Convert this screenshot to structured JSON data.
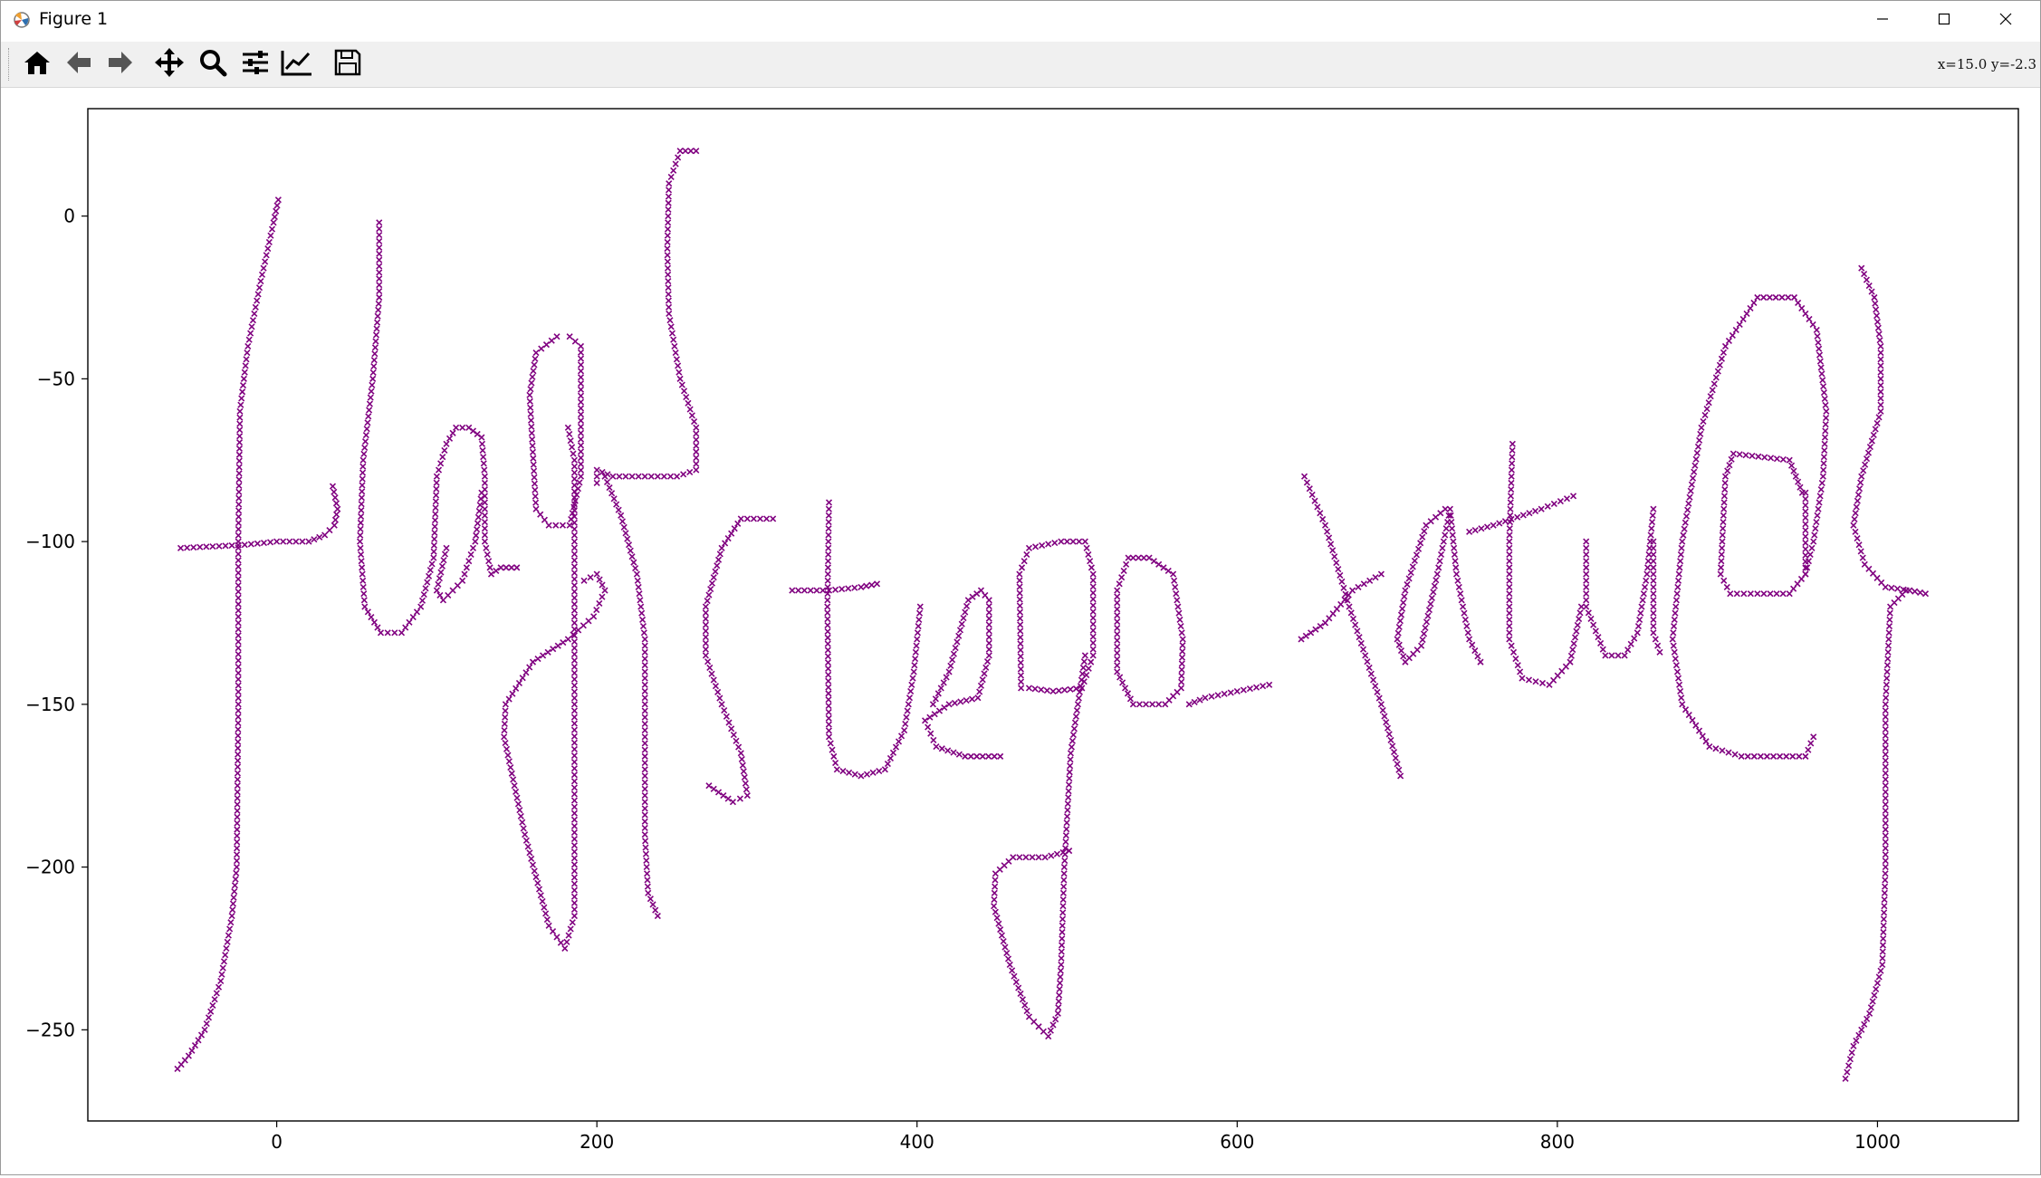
{
  "window": {
    "title": "Figure 1",
    "minimize_icon": "minimize-icon",
    "maximize_icon": "maximize-icon",
    "close_icon": "close-icon"
  },
  "toolbar": {
    "tools": [
      "home-icon",
      "back-arrow-icon",
      "forward-arrow-icon",
      "pan-icon",
      "zoom-icon",
      "configure-subplots-icon",
      "edit-axis-icon",
      "save-icon"
    ],
    "coordinates": "x=15.0  y=-2.3"
  },
  "colors": {
    "marker": "#800080",
    "axes": "#000000",
    "background": "#ffffff"
  },
  "chart_data": {
    "type": "scatter",
    "marker": "x",
    "color": "#800080",
    "title": "",
    "xlabel": "",
    "ylabel": "",
    "xlim": [
      -118,
      1088
    ],
    "ylim": [
      -278,
      33
    ],
    "xticks": [
      0,
      200,
      400,
      600,
      800,
      1000
    ],
    "xticklabels": [
      "0",
      "200",
      "400",
      "600",
      "800",
      "1000"
    ],
    "yticks": [
      0,
      -50,
      -100,
      -150,
      -200,
      -250
    ],
    "yticklabels": [
      "0",
      "−50",
      "−100",
      "−150",
      "−200",
      "−250"
    ],
    "grid": false,
    "strokes": [
      [
        [
          -60,
          -102
        ],
        [
          -20,
          -101
        ],
        [
          0,
          -100
        ],
        [
          20,
          -100
        ],
        [
          30,
          -98
        ],
        [
          36,
          -95
        ],
        [
          38,
          -90
        ],
        [
          35,
          -83
        ]
      ],
      [
        [
          1,
          5
        ],
        [
          -2,
          -2
        ],
        [
          -10,
          -20
        ],
        [
          -18,
          -40
        ],
        [
          -23,
          -60
        ],
        [
          -24,
          -100
        ],
        [
          -24,
          -150
        ],
        [
          -25,
          -200
        ],
        [
          -28,
          -215
        ],
        [
          -35,
          -235
        ],
        [
          -45,
          -250
        ],
        [
          -55,
          -258
        ],
        [
          -62,
          -262
        ]
      ],
      [
        [
          64,
          -2
        ],
        [
          64,
          -25
        ],
        [
          60,
          -50
        ],
        [
          54,
          -75
        ],
        [
          52,
          -100
        ],
        [
          55,
          -120
        ],
        [
          65,
          -128
        ],
        [
          78,
          -128
        ],
        [
          90,
          -120
        ],
        [
          98,
          -105
        ],
        [
          100,
          -80
        ],
        [
          106,
          -70
        ],
        [
          112,
          -65
        ],
        [
          120,
          -65
        ],
        [
          128,
          -68
        ],
        [
          130,
          -80
        ],
        [
          130,
          -100
        ],
        [
          134,
          -110
        ],
        [
          140,
          -108
        ],
        [
          150,
          -108
        ]
      ],
      [
        [
          106,
          -102
        ],
        [
          100,
          -115
        ],
        [
          104,
          -118
        ],
        [
          116,
          -112
        ],
        [
          124,
          -100
        ],
        [
          128,
          -85
        ]
      ],
      [
        [
          175,
          -37
        ],
        [
          162,
          -42
        ],
        [
          158,
          -55
        ],
        [
          162,
          -90
        ],
        [
          170,
          -95
        ],
        [
          183,
          -95
        ],
        [
          190,
          -80
        ],
        [
          190,
          -40
        ],
        [
          183,
          -37
        ]
      ],
      [
        [
          182,
          -65
        ],
        [
          186,
          -75
        ],
        [
          186,
          -150
        ],
        [
          186,
          -215
        ],
        [
          180,
          -225
        ],
        [
          170,
          -218
        ],
        [
          155,
          -190
        ],
        [
          142,
          -160
        ],
        [
          143,
          -150
        ],
        [
          160,
          -137
        ],
        [
          182,
          -130
        ],
        [
          198,
          -123
        ],
        [
          205,
          -115
        ],
        [
          200,
          -110
        ],
        [
          192,
          -112
        ]
      ],
      [
        [
          200,
          -82
        ],
        [
          200,
          -78
        ],
        [
          210,
          -80
        ],
        [
          250,
          -80
        ],
        [
          262,
          -78
        ],
        [
          262,
          -65
        ],
        [
          252,
          -50
        ],
        [
          245,
          -30
        ],
        [
          244,
          -10
        ],
        [
          245,
          10
        ],
        [
          252,
          20
        ],
        [
          262,
          20
        ]
      ],
      [
        [
          205,
          -80
        ],
        [
          215,
          -92
        ],
        [
          225,
          -110
        ],
        [
          230,
          -130
        ],
        [
          230,
          -160
        ],
        [
          230,
          -190
        ],
        [
          232,
          -208
        ],
        [
          238,
          -215
        ]
      ],
      [
        [
          310,
          -93
        ],
        [
          290,
          -93
        ],
        [
          278,
          -102
        ],
        [
          268,
          -120
        ],
        [
          268,
          -135
        ],
        [
          278,
          -150
        ],
        [
          290,
          -165
        ],
        [
          294,
          -178
        ],
        [
          285,
          -180
        ],
        [
          270,
          -175
        ]
      ],
      [
        [
          345,
          -88
        ],
        [
          344,
          -120
        ],
        [
          345,
          -160
        ],
        [
          350,
          -170
        ],
        [
          365,
          -172
        ],
        [
          380,
          -170
        ],
        [
          392,
          -158
        ],
        [
          398,
          -140
        ],
        [
          402,
          -120
        ]
      ],
      [
        [
          322,
          -115
        ],
        [
          345,
          -115
        ],
        [
          365,
          -114
        ],
        [
          375,
          -113
        ]
      ],
      [
        [
          410,
          -150
        ],
        [
          420,
          -140
        ],
        [
          432,
          -118
        ],
        [
          440,
          -115
        ],
        [
          445,
          -118
        ],
        [
          445,
          -135
        ],
        [
          438,
          -148
        ],
        [
          420,
          -150
        ],
        [
          405,
          -155
        ],
        [
          412,
          -163
        ],
        [
          430,
          -166
        ],
        [
          452,
          -166
        ]
      ],
      [
        [
          465,
          -145
        ],
        [
          464,
          -110
        ],
        [
          470,
          -102
        ],
        [
          490,
          -100
        ],
        [
          505,
          -100
        ],
        [
          510,
          -110
        ],
        [
          510,
          -135
        ],
        [
          503,
          -145
        ],
        [
          485,
          -146
        ],
        [
          470,
          -145
        ]
      ],
      [
        [
          505,
          -135
        ],
        [
          496,
          -165
        ],
        [
          492,
          -200
        ],
        [
          490,
          -230
        ],
        [
          488,
          -245
        ],
        [
          482,
          -252
        ],
        [
          470,
          -246
        ],
        [
          458,
          -230
        ],
        [
          448,
          -212
        ],
        [
          449,
          -202
        ],
        [
          460,
          -197
        ],
        [
          480,
          -197
        ],
        [
          495,
          -195
        ]
      ],
      [
        [
          535,
          -105
        ],
        [
          545,
          -105
        ],
        [
          560,
          -110
        ],
        [
          566,
          -130
        ],
        [
          565,
          -145
        ],
        [
          555,
          -150
        ],
        [
          535,
          -150
        ],
        [
          525,
          -140
        ],
        [
          525,
          -115
        ],
        [
          532,
          -105
        ]
      ],
      [
        [
          570,
          -150
        ],
        [
          580,
          -148
        ],
        [
          600,
          -146
        ],
        [
          620,
          -144
        ]
      ],
      [
        [
          642,
          -80
        ],
        [
          655,
          -95
        ],
        [
          670,
          -120
        ],
        [
          690,
          -150
        ],
        [
          702,
          -172
        ]
      ],
      [
        [
          690,
          -110
        ],
        [
          672,
          -115
        ],
        [
          655,
          -125
        ],
        [
          640,
          -130
        ]
      ],
      [
        [
          730,
          -90
        ],
        [
          718,
          -95
        ],
        [
          705,
          -115
        ],
        [
          700,
          -130
        ],
        [
          705,
          -137
        ],
        [
          715,
          -132
        ],
        [
          725,
          -110
        ],
        [
          733,
          -90
        ],
        [
          737,
          -110
        ],
        [
          745,
          -130
        ],
        [
          752,
          -137
        ]
      ],
      [
        [
          772,
          -70
        ],
        [
          770,
          -100
        ],
        [
          770,
          -130
        ],
        [
          778,
          -142
        ],
        [
          795,
          -144
        ],
        [
          808,
          -137
        ],
        [
          815,
          -120
        ]
      ],
      [
        [
          745,
          -97
        ],
        [
          760,
          -95
        ],
        [
          790,
          -90
        ],
        [
          810,
          -86
        ]
      ],
      [
        [
          818,
          -100
        ],
        [
          818,
          -120
        ],
        [
          830,
          -135
        ],
        [
          842,
          -135
        ],
        [
          850,
          -128
        ],
        [
          856,
          -110
        ],
        [
          860,
          -90
        ]
      ],
      [
        [
          860,
          -100
        ],
        [
          860,
          -128
        ],
        [
          864,
          -134
        ]
      ],
      [
        [
          953,
          -85
        ],
        [
          945,
          -75
        ],
        [
          910,
          -73
        ],
        [
          905,
          -80
        ],
        [
          902,
          -110
        ],
        [
          908,
          -116
        ],
        [
          925,
          -116
        ],
        [
          945,
          -116
        ],
        [
          955,
          -110
        ],
        [
          955,
          -85
        ]
      ],
      [
        [
          955,
          -110
        ],
        [
          960,
          -100
        ],
        [
          966,
          -80
        ],
        [
          968,
          -60
        ],
        [
          962,
          -35
        ],
        [
          948,
          -25
        ],
        [
          925,
          -25
        ],
        [
          905,
          -40
        ],
        [
          890,
          -65
        ],
        [
          878,
          -100
        ],
        [
          872,
          -130
        ],
        [
          878,
          -150
        ],
        [
          895,
          -163
        ],
        [
          915,
          -166
        ],
        [
          955,
          -166
        ],
        [
          960,
          -160
        ]
      ],
      [
        [
          990,
          -16
        ],
        [
          998,
          -25
        ],
        [
          1002,
          -40
        ],
        [
          1002,
          -60
        ],
        [
          990,
          -80
        ],
        [
          985,
          -95
        ],
        [
          992,
          -107
        ],
        [
          1005,
          -114
        ],
        [
          1020,
          -115
        ],
        [
          1030,
          -116
        ]
      ],
      [
        [
          1018,
          -115
        ],
        [
          1008,
          -120
        ],
        [
          1005,
          -150
        ],
        [
          1005,
          -200
        ],
        [
          1003,
          -230
        ],
        [
          995,
          -245
        ],
        [
          985,
          -255
        ],
        [
          980,
          -265
        ]
      ]
    ]
  }
}
